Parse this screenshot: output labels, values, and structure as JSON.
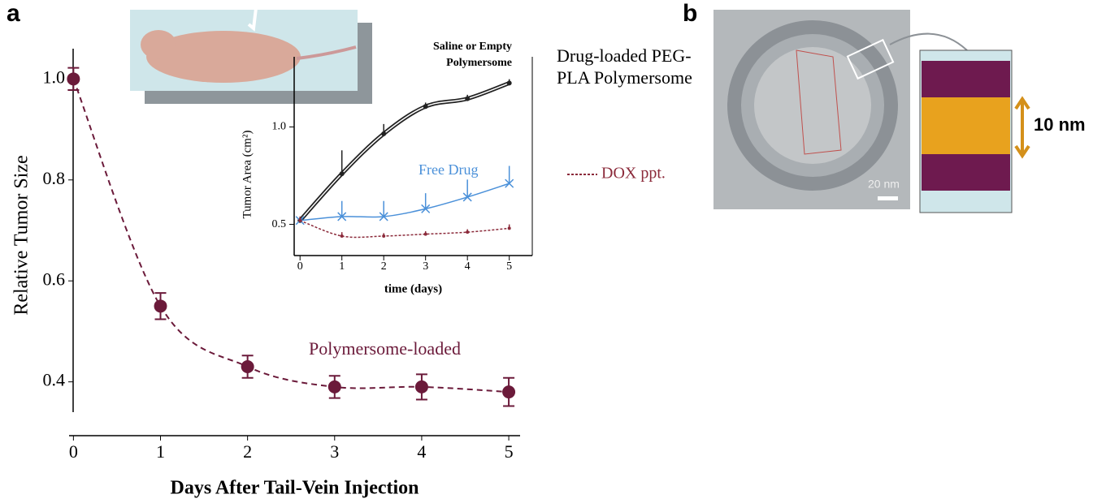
{
  "panels": {
    "a": "a",
    "b": "b"
  },
  "chart_data": [
    {
      "type": "scatter",
      "ylabel": "Relative Tumor Size",
      "xlabel": "Days After Tail-Vein Injection",
      "x": [
        0,
        1,
        2,
        3,
        4,
        5
      ],
      "series": [
        {
          "name": "Polymersome-loaded",
          "color": "#6b1a3a",
          "values": [
            1.0,
            0.55,
            0.43,
            0.39,
            0.39,
            0.38
          ],
          "errors": [
            0.022,
            0.026,
            0.022,
            0.022,
            0.025,
            0.028
          ]
        }
      ],
      "xlim": [
        -0.05,
        5.13
      ],
      "ylim": [
        0.34,
        1.06
      ],
      "xticks": [
        0,
        1,
        2,
        3,
        4,
        5
      ],
      "yticks": [
        0.4,
        0.6,
        0.8,
        {
          "value": 1,
          "label": "1.0"
        }
      ]
    },
    {
      "type": "line",
      "ylabel": "Tumor Area (cm²)",
      "xlabel": "time (days)",
      "annotation": "Drug-loaded PEG-PLA Polymersome",
      "x": [
        0,
        1,
        2,
        3,
        4,
        5
      ],
      "series": [
        {
          "name": "Saline or Empty Polymersome",
          "color": "#222222",
          "values": [
            0.52,
            0.76,
            0.965,
            1.105,
            1.145,
            1.225
          ],
          "errors": [
            0.02,
            0.12,
            0.05,
            0.02,
            0.02,
            0.02
          ]
        },
        {
          "name": "Free Drug",
          "color": "#4a90d9",
          "values": [
            0.52,
            0.54,
            0.54,
            0.58,
            0.64,
            0.71
          ],
          "errors": [
            0.02,
            0.08,
            0.08,
            0.08,
            0.09,
            0.09
          ]
        },
        {
          "name": "DOX ppt.",
          "color": "#8b2a3a",
          "values": [
            0.52,
            0.44,
            0.44,
            0.45,
            0.46,
            0.48
          ],
          "errors": [
            0.02,
            0.02,
            0.015,
            0.015,
            0.015,
            0.02
          ]
        }
      ],
      "xlim": [
        -0.14,
        5.55
      ],
      "ylim": [
        0.34,
        1.36
      ],
      "xticks": [
        0,
        1,
        2,
        3,
        4,
        5
      ],
      "yticks": [
        0.5,
        {
          "value": 1,
          "label": "1.0"
        }
      ]
    }
  ],
  "image_b": {
    "scale_bar": "20 nm",
    "membrane_thickness": "10 nm"
  }
}
